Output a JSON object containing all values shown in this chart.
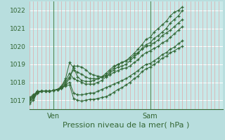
{
  "background_color": "#b8dede",
  "plot_bg_color": "#c8e8e8",
  "grid_h_color": "#ffffff",
  "grid_v_color": "#ddaaaa",
  "vline_color": "#558855",
  "line_color": "#336633",
  "xlabel": "Pression niveau de la mer( hPa )",
  "xlabel_fontsize": 8,
  "yticks": [
    1017,
    1018,
    1019,
    1020,
    1021,
    1022
  ],
  "ylim": [
    1016.5,
    1022.5
  ],
  "xlim": [
    0,
    48
  ],
  "ven_x": 6,
  "sam_x": 30,
  "n_vgrid": 48,
  "series": [
    [
      0,
      1016.8,
      1,
      1017.0,
      2,
      1017.4,
      3,
      1017.5,
      4,
      1017.5,
      5,
      1017.5,
      6,
      1017.55,
      7,
      1017.6,
      8,
      1017.8,
      9,
      1018.2,
      10,
      1019.1,
      11,
      1018.8,
      12,
      1018.3,
      13,
      1018.1,
      14,
      1018.05,
      15,
      1018.05,
      16,
      1018.1,
      17,
      1018.2,
      18,
      1018.3,
      19,
      1018.5,
      20,
      1018.7,
      21,
      1018.9,
      22,
      1019.0,
      23,
      1019.1,
      24,
      1019.2,
      25,
      1019.4,
      26,
      1019.6,
      27,
      1019.85,
      28,
      1020.1,
      29,
      1020.4,
      30,
      1020.5,
      31,
      1020.8,
      32,
      1021.0,
      33,
      1021.2,
      34,
      1021.4,
      35,
      1021.7,
      36,
      1021.9,
      37,
      1022.0,
      38,
      1022.2
    ],
    [
      0,
      1016.9,
      1,
      1017.1,
      2,
      1017.4,
      3,
      1017.5,
      4,
      1017.5,
      5,
      1017.5,
      6,
      1017.55,
      7,
      1017.6,
      8,
      1017.75,
      9,
      1018.1,
      10,
      1018.5,
      11,
      1018.2,
      12,
      1018.1,
      13,
      1018.0,
      14,
      1017.9,
      15,
      1017.9,
      16,
      1017.9,
      17,
      1018.0,
      18,
      1018.1,
      19,
      1018.3,
      20,
      1018.5,
      21,
      1018.7,
      22,
      1018.85,
      23,
      1018.9,
      24,
      1019.0,
      25,
      1019.2,
      26,
      1019.4,
      27,
      1019.6,
      28,
      1019.9,
      29,
      1020.1,
      30,
      1020.2,
      31,
      1020.45,
      32,
      1020.6,
      33,
      1020.8,
      34,
      1021.0,
      35,
      1021.3,
      36,
      1021.5,
      37,
      1021.7,
      38,
      1022.0
    ],
    [
      0,
      1017.0,
      1,
      1017.15,
      2,
      1017.45,
      3,
      1017.5,
      4,
      1017.5,
      5,
      1017.5,
      6,
      1017.55,
      7,
      1017.6,
      8,
      1017.7,
      9,
      1018.0,
      10,
      1018.3,
      11,
      1018.7,
      12,
      1018.55,
      13,
      1018.45,
      14,
      1018.3,
      15,
      1018.2,
      16,
      1018.2,
      17,
      1018.2,
      18,
      1018.3,
      19,
      1018.4,
      20,
      1018.6,
      21,
      1018.8,
      22,
      1019.0,
      23,
      1019.1,
      24,
      1019.2,
      25,
      1019.3,
      26,
      1019.5,
      27,
      1019.65,
      28,
      1019.85,
      29,
      1020.0,
      30,
      1020.05,
      31,
      1020.2,
      32,
      1020.35,
      33,
      1020.6,
      34,
      1020.75,
      35,
      1020.9,
      36,
      1021.1,
      37,
      1021.3,
      38,
      1021.5
    ],
    [
      0,
      1017.05,
      1,
      1017.2,
      2,
      1017.45,
      3,
      1017.5,
      4,
      1017.5,
      5,
      1017.5,
      6,
      1017.55,
      7,
      1017.6,
      8,
      1017.65,
      9,
      1017.9,
      10,
      1018.2,
      11,
      1018.9,
      12,
      1018.9,
      13,
      1018.85,
      14,
      1018.7,
      15,
      1018.5,
      16,
      1018.4,
      17,
      1018.35,
      18,
      1018.3,
      19,
      1018.35,
      20,
      1018.4,
      21,
      1018.55,
      22,
      1018.65,
      23,
      1018.75,
      24,
      1018.8,
      25,
      1018.9,
      26,
      1019.1,
      27,
      1019.25,
      28,
      1019.5,
      29,
      1019.65,
      30,
      1019.75,
      31,
      1019.9,
      32,
      1020.0,
      33,
      1020.2,
      34,
      1020.3,
      35,
      1020.5,
      36,
      1020.7,
      37,
      1020.9,
      38,
      1021.1
    ],
    [
      0,
      1017.1,
      1,
      1017.25,
      2,
      1017.5,
      3,
      1017.5,
      4,
      1017.5,
      5,
      1017.5,
      6,
      1017.55,
      7,
      1017.6,
      8,
      1017.65,
      9,
      1017.85,
      10,
      1018.0,
      11,
      1017.4,
      12,
      1017.3,
      13,
      1017.3,
      14,
      1017.35,
      15,
      1017.4,
      16,
      1017.4,
      17,
      1017.5,
      18,
      1017.6,
      19,
      1017.7,
      20,
      1017.8,
      21,
      1017.9,
      22,
      1018.0,
      23,
      1018.1,
      24,
      1018.2,
      25,
      1018.35,
      26,
      1018.5,
      27,
      1018.65,
      28,
      1018.85,
      29,
      1019.0,
      30,
      1019.05,
      31,
      1019.2,
      32,
      1019.35,
      33,
      1019.55,
      34,
      1019.65,
      35,
      1019.85,
      36,
      1019.95,
      37,
      1020.15,
      38,
      1020.3
    ],
    [
      0,
      1017.15,
      1,
      1017.3,
      2,
      1017.5,
      3,
      1017.5,
      4,
      1017.5,
      5,
      1017.5,
      6,
      1017.55,
      7,
      1017.6,
      8,
      1017.65,
      9,
      1017.8,
      10,
      1017.85,
      11,
      1017.1,
      12,
      1017.0,
      13,
      1016.95,
      14,
      1017.0,
      15,
      1017.05,
      16,
      1017.05,
      17,
      1017.1,
      18,
      1017.15,
      19,
      1017.2,
      20,
      1017.3,
      21,
      1017.45,
      22,
      1017.6,
      23,
      1017.7,
      24,
      1017.85,
      25,
      1018.0,
      26,
      1018.2,
      27,
      1018.35,
      28,
      1018.6,
      29,
      1018.75,
      30,
      1018.85,
      31,
      1019.0,
      32,
      1019.15,
      33,
      1019.35,
      34,
      1019.45,
      35,
      1019.65,
      36,
      1019.75,
      37,
      1019.9,
      38,
      1020.0
    ]
  ]
}
